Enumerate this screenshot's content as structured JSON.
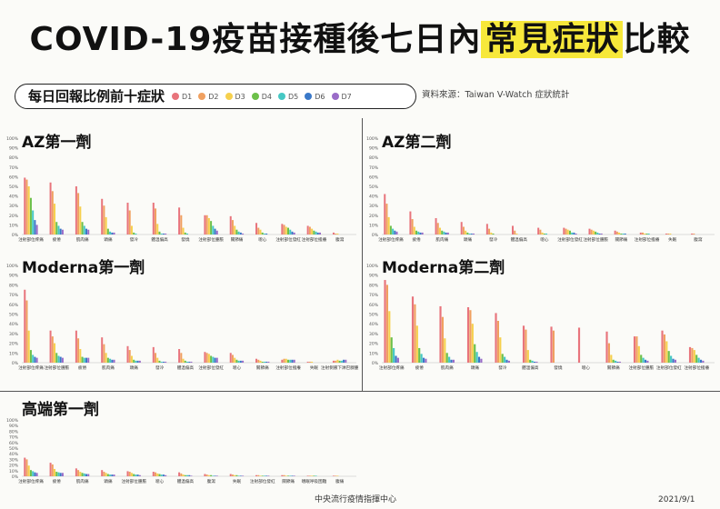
{
  "page": {
    "title_part1": "COVID-19疫苗接種後七日內",
    "title_highlight": "常見症狀",
    "title_part3": "比較",
    "legend_title": "每日回報比例前十症狀",
    "source": "資料來源：Taiwan V-Watch 症狀統計",
    "footer_center": "中央流行疫情指揮中心",
    "footer_date": "2021/9/1"
  },
  "legend": [
    {
      "name": "D1",
      "color": "#e8747c"
    },
    {
      "name": "D2",
      "color": "#f0a060"
    },
    {
      "name": "D3",
      "color": "#f6d04d"
    },
    {
      "name": "D4",
      "color": "#6cc04a"
    },
    {
      "name": "D5",
      "color": "#46c8c4"
    },
    {
      "name": "D6",
      "color": "#3a78c8"
    },
    {
      "name": "D7",
      "color": "#9a6cc8"
    }
  ],
  "chart_data": [
    {
      "type": "bar",
      "title": "AZ第一劑",
      "ylim": [
        0,
        100
      ],
      "yticks": [
        "0%",
        "10%",
        "20%",
        "30%",
        "40%",
        "50%",
        "60%",
        "70%",
        "80%",
        "90%",
        "100%"
      ],
      "categories": [
        "注射部位疼痛",
        "疲倦",
        "肌肉痛",
        "頭痛",
        "發冷",
        "體溫偏高",
        "發燒",
        "注射部位腫脹",
        "關節痛",
        "噁心",
        "注射部位發紅",
        "注射部位搔癢",
        "腹瀉"
      ],
      "series": [
        {
          "values": [
            59,
            54,
            50,
            37,
            33,
            33,
            28,
            20,
            19,
            12,
            11,
            9,
            2
          ]
        },
        {
          "values": [
            57,
            45,
            43,
            30,
            25,
            27,
            20,
            20,
            15,
            7,
            10,
            8,
            1
          ]
        },
        {
          "values": [
            50,
            32,
            29,
            18,
            9,
            11,
            7,
            17,
            9,
            5,
            8,
            6,
            1
          ]
        },
        {
          "values": [
            38,
            13,
            13,
            6,
            2,
            3,
            2,
            14,
            5,
            2,
            7,
            4,
            0
          ]
        },
        {
          "values": [
            25,
            9,
            9,
            3,
            1,
            1,
            1,
            9,
            3,
            1,
            5,
            3,
            0
          ]
        },
        {
          "values": [
            15,
            6,
            6,
            2,
            0,
            1,
            0,
            6,
            2,
            1,
            3,
            2,
            0
          ]
        },
        {
          "values": [
            10,
            5,
            5,
            2,
            0,
            1,
            0,
            4,
            1,
            0,
            2,
            2,
            0
          ]
        }
      ]
    },
    {
      "type": "bar",
      "title": "AZ第二劑",
      "ylim": [
        0,
        100
      ],
      "yticks": [
        "0%",
        "10%",
        "20%",
        "30%",
        "40%",
        "50%",
        "60%",
        "70%",
        "80%",
        "90%",
        "100%"
      ],
      "categories": [
        "注射部位疼痛",
        "疲倦",
        "肌肉痛",
        "頭痛",
        "發冷",
        "體溫偏高",
        "噁心",
        "注射部位發紅",
        "注射部位腫脹",
        "關節痛",
        "注射部位搔癢",
        "失眠",
        "腹瀉"
      ],
      "series": [
        {
          "values": [
            42,
            24,
            17,
            13,
            11,
            9,
            7,
            7,
            6,
            4,
            2,
            1,
            1
          ]
        },
        {
          "values": [
            32,
            16,
            12,
            8,
            6,
            4,
            5,
            6,
            5,
            3,
            2,
            1,
            1
          ]
        },
        {
          "values": [
            18,
            8,
            7,
            4,
            2,
            1,
            2,
            5,
            4,
            2,
            1,
            1,
            0
          ]
        },
        {
          "values": [
            9,
            4,
            4,
            2,
            1,
            0,
            1,
            4,
            3,
            1,
            1,
            0,
            0
          ]
        },
        {
          "values": [
            6,
            3,
            3,
            1,
            0,
            0,
            1,
            2,
            2,
            1,
            1,
            0,
            0
          ]
        },
        {
          "values": [
            4,
            2,
            2,
            1,
            0,
            0,
            0,
            2,
            1,
            1,
            0,
            0,
            0
          ]
        },
        {
          "values": [
            3,
            2,
            2,
            1,
            0,
            0,
            0,
            1,
            1,
            0,
            0,
            0,
            0
          ]
        }
      ]
    },
    {
      "type": "bar",
      "title": "Moderna第一劑",
      "ylim": [
        0,
        100
      ],
      "yticks": [
        "0%",
        "10%",
        "20%",
        "30%",
        "40%",
        "50%",
        "60%",
        "70%",
        "80%",
        "90%",
        "100%"
      ],
      "categories": [
        "注射部位疼痛",
        "注射部位腫脹",
        "疲倦",
        "肌肉痛",
        "頭痛",
        "發冷",
        "體溫偏高",
        "注射部位發紅",
        "噁心",
        "關節痛",
        "注射部位搔癢",
        "失眠",
        "注射側腋下淋巴腺腫"
      ],
      "series": [
        {
          "values": [
            75,
            33,
            33,
            26,
            17,
            16,
            14,
            11,
            10,
            4,
            3,
            1,
            2
          ]
        },
        {
          "values": [
            64,
            27,
            25,
            19,
            13,
            10,
            10,
            10,
            8,
            3,
            4,
            1,
            2
          ]
        },
        {
          "values": [
            33,
            20,
            14,
            10,
            7,
            5,
            4,
            9,
            5,
            2,
            4,
            1,
            3
          ]
        },
        {
          "values": [
            13,
            10,
            6,
            5,
            3,
            2,
            2,
            7,
            3,
            1,
            3,
            0,
            2
          ]
        },
        {
          "values": [
            8,
            7,
            5,
            4,
            2,
            1,
            1,
            6,
            2,
            1,
            3,
            0,
            2
          ]
        },
        {
          "values": [
            6,
            6,
            5,
            3,
            2,
            1,
            1,
            5,
            2,
            1,
            3,
            0,
            3
          ]
        },
        {
          "values": [
            5,
            5,
            5,
            3,
            2,
            1,
            1,
            5,
            2,
            1,
            3,
            0,
            3
          ]
        }
      ]
    },
    {
      "type": "bar",
      "title": "Moderna第二劑",
      "ylim": [
        0,
        100
      ],
      "yticks": [
        "0%",
        "10%",
        "20%",
        "30%",
        "40%",
        "50%",
        "60%",
        "70%",
        "80%",
        "90%",
        "100%"
      ],
      "categories": [
        "注射部位疼痛",
        "疲倦",
        "肌肉痛",
        "頭痛",
        "發冷",
        "體溫偏高",
        "發燒",
        "噁心",
        "關節痛",
        "注射部位腫脹",
        "注射部位發紅",
        "注射部位搔癢"
      ],
      "series": [
        {
          "values": [
            85,
            68,
            58,
            57,
            51,
            38,
            37,
            36,
            32,
            27,
            33,
            16
          ]
        },
        {
          "values": [
            80,
            60,
            47,
            54,
            43,
            34,
            33,
            0,
            20,
            27,
            29,
            15
          ]
        },
        {
          "values": [
            53,
            38,
            25,
            40,
            26,
            13,
            0,
            0,
            8,
            17,
            22,
            13
          ]
        },
        {
          "values": [
            26,
            15,
            10,
            19,
            9,
            3,
            0,
            0,
            3,
            8,
            12,
            8
          ]
        },
        {
          "values": [
            15,
            9,
            6,
            11,
            6,
            2,
            0,
            0,
            2,
            5,
            7,
            5
          ]
        },
        {
          "values": [
            7,
            5,
            3,
            6,
            3,
            1,
            0,
            0,
            1,
            3,
            4,
            3
          ]
        },
        {
          "values": [
            5,
            4,
            3,
            4,
            2,
            1,
            0,
            0,
            1,
            2,
            3,
            2
          ]
        }
      ]
    },
    {
      "type": "bar",
      "title": "高端第一劑",
      "ylim": [
        0,
        100
      ],
      "yticks": [
        "0%",
        "10%",
        "20%",
        "30%",
        "40%",
        "50%",
        "60%",
        "70%",
        "80%",
        "90%",
        "100%"
      ],
      "categories": [
        "注射部位疼痛",
        "疲倦",
        "肌肉痛",
        "頭痛",
        "注射部位腫脹",
        "噁心",
        "體溫偏高",
        "腹瀉",
        "失眠",
        "注射部位發紅",
        "關節痛",
        "嗜眠呼吸困難",
        "腹痛"
      ],
      "series": [
        {
          "values": [
            33,
            24,
            14,
            11,
            9,
            8,
            7,
            4,
            4,
            2,
            2,
            1,
            1
          ]
        },
        {
          "values": [
            30,
            21,
            11,
            8,
            8,
            7,
            5,
            3,
            3,
            2,
            2,
            1,
            1
          ]
        },
        {
          "values": [
            19,
            13,
            8,
            6,
            6,
            5,
            3,
            2,
            2,
            1,
            1,
            1,
            1
          ]
        },
        {
          "values": [
            11,
            8,
            6,
            4,
            4,
            4,
            2,
            2,
            2,
            1,
            1,
            1,
            0
          ]
        },
        {
          "values": [
            9,
            7,
            5,
            3,
            3,
            3,
            2,
            1,
            1,
            1,
            1,
            1,
            0
          ]
        },
        {
          "values": [
            7,
            6,
            4,
            3,
            3,
            3,
            2,
            1,
            1,
            1,
            1,
            0,
            0
          ]
        },
        {
          "values": [
            6,
            6,
            4,
            3,
            2,
            2,
            1,
            1,
            1,
            1,
            1,
            0,
            0
          ]
        }
      ]
    }
  ]
}
